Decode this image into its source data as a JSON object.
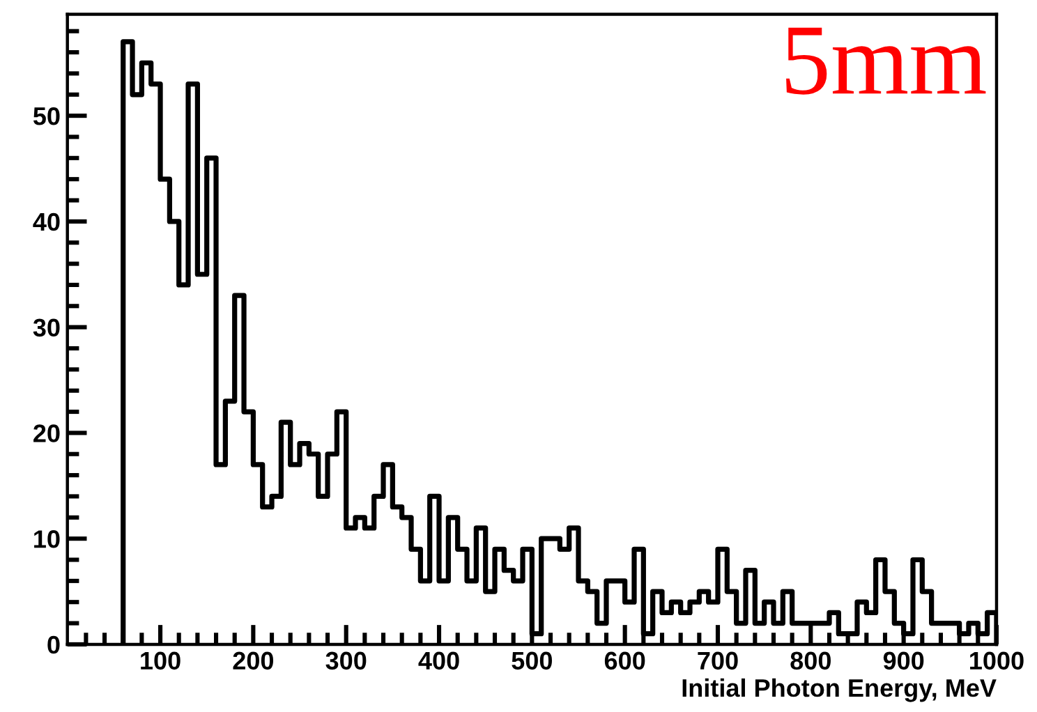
{
  "chart_data": {
    "type": "histogram",
    "xlabel": "Initial Photon Energy, MeV",
    "annotations": [
      "5mm"
    ],
    "bins": [
      60,
      70,
      80,
      90,
      100,
      110,
      120,
      130,
      140,
      150,
      160,
      170,
      180,
      190,
      200,
      210,
      220,
      230,
      240,
      250,
      260,
      270,
      280,
      290,
      300,
      310,
      320,
      330,
      340,
      350,
      360,
      370,
      380,
      390,
      400,
      410,
      420,
      430,
      440,
      450,
      460,
      470,
      480,
      490,
      500,
      510,
      520,
      530,
      540,
      550,
      560,
      570,
      580,
      590,
      600,
      610,
      620,
      630,
      640,
      650,
      660,
      670,
      680,
      690,
      700,
      710,
      720,
      730,
      740,
      750,
      760,
      770,
      780,
      790,
      800,
      810,
      820,
      830,
      840,
      850,
      860,
      870,
      880,
      890,
      900,
      910,
      920,
      930,
      940,
      950,
      960,
      970,
      980,
      990,
      1000
    ],
    "values": [
      57,
      52,
      55,
      53,
      44,
      40,
      34,
      53,
      35,
      46,
      17,
      23,
      33,
      22,
      17,
      13,
      14,
      21,
      17,
      19,
      18,
      14,
      18,
      22,
      11,
      12,
      11,
      14,
      17,
      13,
      12,
      9,
      6,
      14,
      6,
      12,
      9,
      6,
      11,
      5,
      9,
      7,
      6,
      9,
      1,
      10,
      10,
      9,
      11,
      6,
      5,
      2,
      6,
      6,
      4,
      9,
      1,
      5,
      3,
      4,
      3,
      4,
      5,
      4,
      9,
      5,
      2,
      7,
      2,
      4,
      2,
      5,
      2,
      2,
      2,
      2,
      3,
      1,
      1,
      4,
      3,
      8,
      5,
      2,
      1,
      8,
      5,
      2,
      2,
      2,
      1,
      2,
      1,
      3
    ],
    "color": "#000000",
    "xlim": [
      0,
      1000
    ],
    "ylim": [
      0,
      59.6
    ],
    "xticks": [
      {
        "value": 20,
        "label": null
      },
      {
        "value": 40,
        "label": null
      },
      {
        "value": 60,
        "label": null
      },
      {
        "value": 80,
        "label": null
      },
      100,
      {
        "value": 120,
        "label": null
      },
      {
        "value": 140,
        "label": null
      },
      {
        "value": 160,
        "label": null
      },
      {
        "value": 180,
        "label": null
      },
      200,
      {
        "value": 220,
        "label": null
      },
      {
        "value": 240,
        "label": null
      },
      {
        "value": 260,
        "label": null
      },
      {
        "value": 280,
        "label": null
      },
      300,
      {
        "value": 320,
        "label": null
      },
      {
        "value": 340,
        "label": null
      },
      {
        "value": 360,
        "label": null
      },
      {
        "value": 380,
        "label": null
      },
      400,
      {
        "value": 420,
        "label": null
      },
      {
        "value": 440,
        "label": null
      },
      {
        "value": 460,
        "label": null
      },
      {
        "value": 480,
        "label": null
      },
      500,
      {
        "value": 520,
        "label": null
      },
      {
        "value": 540,
        "label": null
      },
      {
        "value": 560,
        "label": null
      },
      {
        "value": 580,
        "label": null
      },
      600,
      {
        "value": 620,
        "label": null
      },
      {
        "value": 640,
        "label": null
      },
      {
        "value": 660,
        "label": null
      },
      {
        "value": 680,
        "label": null
      },
      700,
      {
        "value": 720,
        "label": null
      },
      {
        "value": 740,
        "label": null
      },
      {
        "value": 760,
        "label": null
      },
      {
        "value": 780,
        "label": null
      },
      800,
      {
        "value": 820,
        "label": null
      },
      {
        "value": 840,
        "label": null
      },
      {
        "value": 860,
        "label": null
      },
      {
        "value": 880,
        "label": null
      },
      900,
      {
        "value": 920,
        "label": null
      },
      {
        "value": 940,
        "label": null
      },
      {
        "value": 960,
        "label": null
      },
      {
        "value": 980,
        "label": null
      },
      1000
    ],
    "yticks": [
      0,
      {
        "value": 2,
        "label": null
      },
      {
        "value": 4,
        "label": null
      },
      {
        "value": 6,
        "label": null
      },
      {
        "value": 8,
        "label": null
      },
      10,
      {
        "value": 12,
        "label": null
      },
      {
        "value": 14,
        "label": null
      },
      {
        "value": 16,
        "label": null
      },
      {
        "value": 18,
        "label": null
      },
      20,
      {
        "value": 22,
        "label": null
      },
      {
        "value": 24,
        "label": null
      },
      {
        "value": 26,
        "label": null
      },
      {
        "value": 28,
        "label": null
      },
      30,
      {
        "value": 32,
        "label": null
      },
      {
        "value": 34,
        "label": null
      },
      {
        "value": 36,
        "label": null
      },
      {
        "value": 38,
        "label": null
      },
      40,
      {
        "value": 42,
        "label": null
      },
      {
        "value": 44,
        "label": null
      },
      {
        "value": 46,
        "label": null
      },
      {
        "value": 48,
        "label": null
      },
      50,
      {
        "value": 52,
        "label": null
      },
      {
        "value": 54,
        "label": null
      },
      {
        "value": 56,
        "label": null
      },
      {
        "value": 58,
        "label": null
      }
    ],
    "grid": false,
    "legend": false
  }
}
